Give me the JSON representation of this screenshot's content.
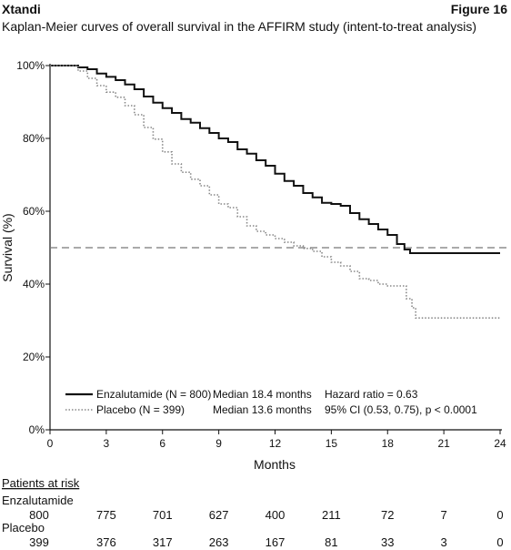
{
  "header": {
    "brand": "Xtandi",
    "figure_label": "Figure 16",
    "subtitle": "Kaplan-Meier curves of overall survival in the AFFIRM study (intent-to-treat analysis)"
  },
  "chart_data": {
    "type": "line",
    "title": "Kaplan-Meier curves of overall survival in the AFFIRM study (intent-to-treat analysis)",
    "xlabel": "Months",
    "ylabel": "Survival (%)",
    "xlim": [
      0,
      24
    ],
    "ylim": [
      0,
      100
    ],
    "x_ticks": [
      "0",
      "3",
      "6",
      "9",
      "12",
      "15",
      "18",
      "21",
      "24"
    ],
    "y_ticks": [
      "0%",
      "20%",
      "40%",
      "60%",
      "80%",
      "100%"
    ],
    "reference_line": {
      "y": 50,
      "style": "dashed"
    },
    "series": [
      {
        "name": "Enzalutamide (N = 800)",
        "style": "solid",
        "color": "#111111",
        "median": "Median 18.4 months",
        "points": [
          [
            0,
            100
          ],
          [
            1,
            100
          ],
          [
            1.5,
            99.5
          ],
          [
            2,
            99
          ],
          [
            2.5,
            97.8
          ],
          [
            3,
            96.9
          ],
          [
            3.5,
            96
          ],
          [
            4,
            94.8
          ],
          [
            4.5,
            93.5
          ],
          [
            5,
            91.5
          ],
          [
            5.5,
            89.8
          ],
          [
            6,
            88.3
          ],
          [
            6.5,
            87
          ],
          [
            7,
            85.3
          ],
          [
            7.5,
            84.3
          ],
          [
            8,
            82.8
          ],
          [
            8.5,
            81.5
          ],
          [
            9,
            80
          ],
          [
            9.5,
            79
          ],
          [
            10,
            77
          ],
          [
            10.5,
            75.8
          ],
          [
            11,
            74
          ],
          [
            11.5,
            72.5
          ],
          [
            12,
            70.3
          ],
          [
            12.5,
            68.3
          ],
          [
            13,
            67
          ],
          [
            13.5,
            65
          ],
          [
            14,
            63.8
          ],
          [
            14.5,
            62.3
          ],
          [
            15,
            62
          ],
          [
            15.5,
            61.5
          ],
          [
            16,
            59.5
          ],
          [
            16.5,
            57.8
          ],
          [
            17,
            56.5
          ],
          [
            17.5,
            55
          ],
          [
            18,
            53.5
          ],
          [
            18.5,
            51
          ],
          [
            18.9,
            49.5
          ],
          [
            19.2,
            48.5
          ],
          [
            20,
            48.5
          ],
          [
            24,
            48.5
          ]
        ]
      },
      {
        "name": "Placebo (N = 399)",
        "style": "dotted",
        "color": "#888888",
        "median": "Median 13.6 months",
        "points": [
          [
            0,
            100
          ],
          [
            1,
            100
          ],
          [
            1.5,
            98.5
          ],
          [
            2,
            96.5
          ],
          [
            2.5,
            94.5
          ],
          [
            3,
            92.7
          ],
          [
            3.5,
            91.3
          ],
          [
            4,
            89
          ],
          [
            4.5,
            86.5
          ],
          [
            5,
            83
          ],
          [
            5.5,
            79.8
          ],
          [
            6,
            76.3
          ],
          [
            6.5,
            73
          ],
          [
            7,
            70.7
          ],
          [
            7.5,
            68.8
          ],
          [
            8,
            67
          ],
          [
            8.5,
            64.5
          ],
          [
            9,
            62
          ],
          [
            9.5,
            61
          ],
          [
            10,
            58.5
          ],
          [
            10.5,
            56
          ],
          [
            11,
            54.5
          ],
          [
            11.5,
            53.5
          ],
          [
            12,
            52.5
          ],
          [
            12.5,
            51.5
          ],
          [
            13,
            50.5
          ],
          [
            13.5,
            49.8
          ],
          [
            14,
            49
          ],
          [
            14.5,
            47.5
          ],
          [
            15,
            46
          ],
          [
            15.5,
            45
          ],
          [
            16,
            43.5
          ],
          [
            16.5,
            41.5
          ],
          [
            17,
            41
          ],
          [
            17.5,
            40
          ],
          [
            18,
            39.5
          ],
          [
            18.5,
            39.5
          ],
          [
            19,
            36
          ],
          [
            19.3,
            33.5
          ],
          [
            19.5,
            30.7
          ],
          [
            24,
            30.7
          ]
        ]
      }
    ],
    "annotations": {
      "hazard_ratio": "Hazard ratio = 0.63",
      "ci": "95% CI (0.53, 0.75), p < 0.0001"
    }
  },
  "risk_table": {
    "title": "Patients at risk",
    "rows": [
      {
        "label": "Enzalutamide",
        "values": [
          "800",
          "775",
          "701",
          "627",
          "400",
          "211",
          "72",
          "7",
          "0"
        ]
      },
      {
        "label": "Placebo",
        "values": [
          "399",
          "376",
          "317",
          "263",
          "167",
          "81",
          "33",
          "3",
          "0"
        ]
      }
    ]
  }
}
